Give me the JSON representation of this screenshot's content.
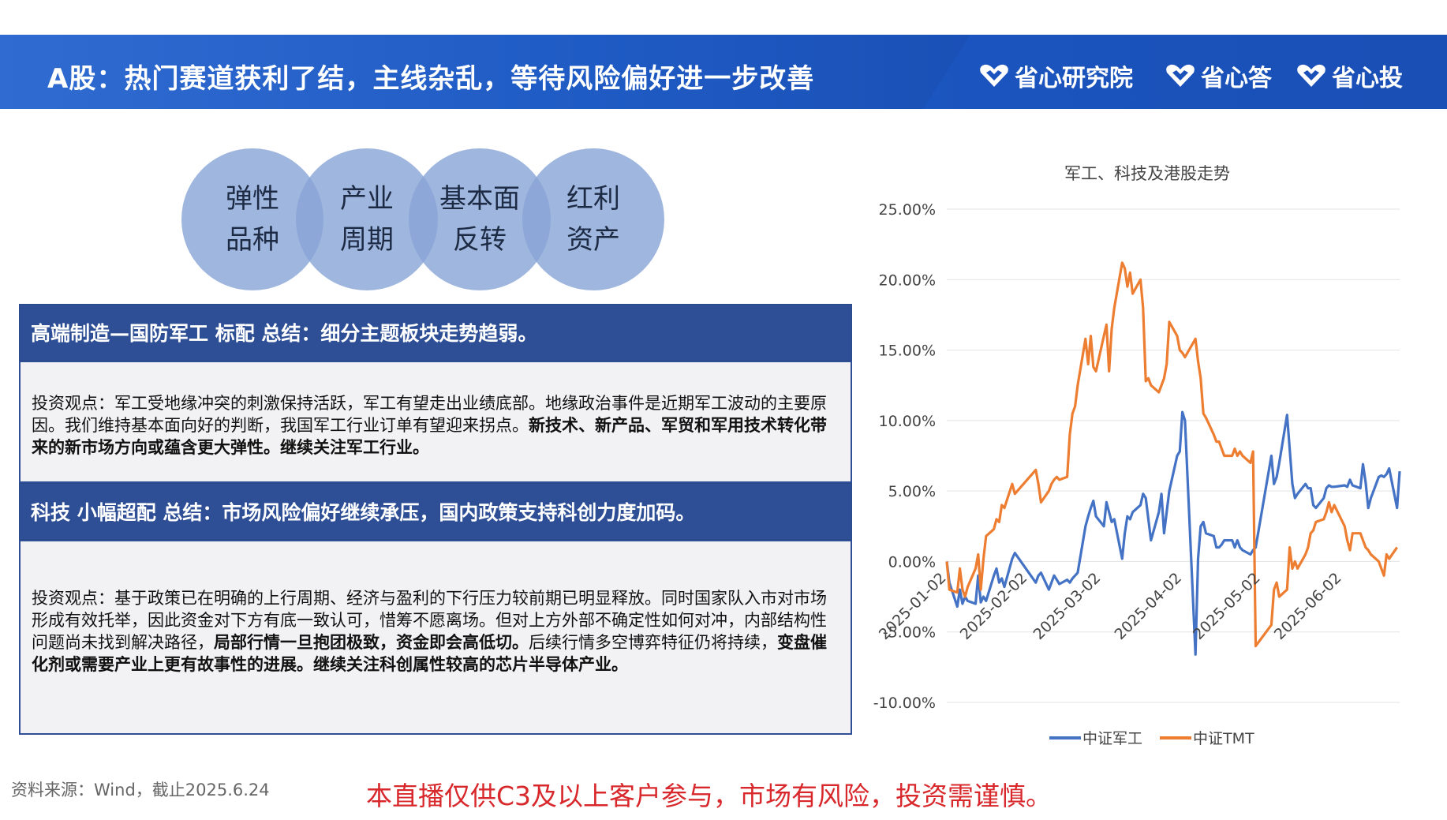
{
  "header": {
    "title": "A股：热门赛道获利了结，主线杂乱，等待风险偏好进一步改善",
    "brands": [
      "省心研究院",
      "省心答",
      "省心投"
    ]
  },
  "bubbles": [
    {
      "line1": "弹性",
      "line2": "品种"
    },
    {
      "line1": "产业",
      "line2": "周期"
    },
    {
      "line1": "基本面",
      "line2": "反转"
    },
    {
      "line1": "红利",
      "line2": "资产"
    }
  ],
  "sections": [
    {
      "heading": "高端制造—国防军工 标配 总结：细分主题板块走势趋弱。",
      "text_plain": "投资观点：军工受地缘冲突的刺激保持活跃，军工有望走出业绩底部。地缘政治事件是近期军工波动的主要原因。我们维持基本面向好的判断，我国军工行业订单有望迎来拐点。",
      "text_bold": "新技术、新产品、军贸和军用技术转化带来的新市场方向或蕴含更大弹性。继续关注军工行业。"
    },
    {
      "heading": "科技 小幅超配 总结：市场风险偏好继续承压，国内政策支持科创力度加码。",
      "text_plain1": "投资观点：基于政策已在明确的上行周期、经济与盈利的下行压力较前期已明显释放。同时国家队入市对市场形成有效托举，因此资金对下方有底一致认可，惜筹不愿离场。但对上方外部不确定性如何对冲，内部结构性问题尚未找到解决路径，",
      "text_bold1": "局部行情一旦抱团极致，资金即会高低切。",
      "text_plain2": "后续行情多空博弈特征仍将持续，",
      "text_bold2": "变盘催化剂或需要产业上更有故事性的进展。继续关注科创属性较高的芯片半导体产业。"
    }
  ],
  "footer": {
    "source": "资料来源：Wind，截止2025.6.24",
    "warning": "本直播仅供C3及以上客户参与，市场有风险，投资需谨慎。"
  },
  "colors": {
    "header_blue": "#1f5bc4",
    "section_blue": "#2e4f96",
    "series_military": "#4472c4",
    "series_tmt": "#ed7d31",
    "warning_red": "#d8282c"
  },
  "chart_data": {
    "type": "line",
    "title": "军工、科技及港股走势",
    "ylim": [
      -10,
      25
    ],
    "yticks": [
      -10,
      -5,
      0,
      5,
      10,
      15,
      20,
      25
    ],
    "ytick_labels": [
      "-10.00%",
      "-5.00%",
      "0.00%",
      "5.00%",
      "10.00%",
      "15.00%",
      "20.00%",
      "25.00%"
    ],
    "xtick_labels": [
      "2025-01-02",
      "2025-02-02",
      "2025-03-02",
      "2025-04-02",
      "2025-05-02",
      "2025-06-02"
    ],
    "x_start": "2025-01-02",
    "x_end": "2025-06-24",
    "grid": true,
    "legend_position": "bottom",
    "series": [
      {
        "name": "中证军工",
        "color": "#4472c4",
        "points": [
          [
            "2025-01-02",
            0
          ],
          [
            "2025-01-03",
            -1.5
          ],
          [
            "2025-01-06",
            -3.2
          ],
          [
            "2025-01-07",
            -2.0
          ],
          [
            "2025-01-08",
            -3.0
          ],
          [
            "2025-01-09",
            -2.5
          ],
          [
            "2025-01-10",
            -2.8
          ],
          [
            "2025-01-13",
            -3.0
          ],
          [
            "2025-01-14",
            -1.0
          ],
          [
            "2025-01-15",
            -2.9
          ],
          [
            "2025-01-16",
            -2.5
          ],
          [
            "2025-01-17",
            -2.8
          ],
          [
            "2025-01-20",
            -1.0
          ],
          [
            "2025-01-21",
            -0.5
          ],
          [
            "2025-01-22",
            -1.5
          ],
          [
            "2025-01-23",
            -1.2
          ],
          [
            "2025-01-24",
            -1.8
          ],
          [
            "2025-01-27",
            0.2
          ],
          [
            "2025-01-28",
            0.6
          ],
          [
            "2025-02-05",
            -1.5
          ],
          [
            "2025-02-06",
            -1.0
          ],
          [
            "2025-02-07",
            -0.8
          ],
          [
            "2025-02-10",
            -2.0
          ],
          [
            "2025-02-11",
            -1.5
          ],
          [
            "2025-02-12",
            -1.0
          ],
          [
            "2025-02-13",
            -1.3
          ],
          [
            "2025-02-14",
            -1.6
          ],
          [
            "2025-02-17",
            -1.3
          ],
          [
            "2025-02-18",
            -1.5
          ],
          [
            "2025-02-19",
            -1.2
          ],
          [
            "2025-02-20",
            -1.0
          ],
          [
            "2025-02-21",
            -0.8
          ],
          [
            "2025-02-24",
            2.5
          ],
          [
            "2025-02-25",
            3.2
          ],
          [
            "2025-02-26",
            3.8
          ],
          [
            "2025-02-27",
            4.3
          ],
          [
            "2025-02-28",
            3.2
          ],
          [
            "2025-03-03",
            2.5
          ],
          [
            "2025-03-04",
            4.2
          ],
          [
            "2025-03-05",
            3.5
          ],
          [
            "2025-03-06",
            2.8
          ],
          [
            "2025-03-07",
            3.0
          ],
          [
            "2025-03-10",
            0.2
          ],
          [
            "2025-03-11",
            2.0
          ],
          [
            "2025-03-12",
            3.2
          ],
          [
            "2025-03-13",
            3.0
          ],
          [
            "2025-03-14",
            3.5
          ],
          [
            "2025-03-17",
            4.0
          ],
          [
            "2025-03-18",
            4.8
          ],
          [
            "2025-03-19",
            4.5
          ],
          [
            "2025-03-20",
            3.0
          ],
          [
            "2025-03-21",
            1.5
          ],
          [
            "2025-03-24",
            3.5
          ],
          [
            "2025-03-25",
            4.8
          ],
          [
            "2025-03-26",
            2.0
          ],
          [
            "2025-03-27",
            3.5
          ],
          [
            "2025-03-28",
            5.0
          ],
          [
            "2025-03-31",
            7.5
          ],
          [
            "2025-04-01",
            7.8
          ],
          [
            "2025-04-02",
            10.6
          ],
          [
            "2025-04-03",
            10.0
          ],
          [
            "2025-04-07",
            -6.6
          ],
          [
            "2025-04-08",
            0.2
          ],
          [
            "2025-04-09",
            2.5
          ],
          [
            "2025-04-10",
            2.8
          ],
          [
            "2025-04-11",
            2.0
          ],
          [
            "2025-04-14",
            1.8
          ],
          [
            "2025-04-15",
            1.0
          ],
          [
            "2025-04-16",
            1.0
          ],
          [
            "2025-04-17",
            1.2
          ],
          [
            "2025-04-18",
            1.5
          ],
          [
            "2025-04-21",
            1.5
          ],
          [
            "2025-04-22",
            1.0
          ],
          [
            "2025-04-23",
            1.5
          ],
          [
            "2025-04-24",
            1.0
          ],
          [
            "2025-04-25",
            0.8
          ],
          [
            "2025-04-28",
            0.5
          ],
          [
            "2025-04-29",
            0.8
          ],
          [
            "2025-04-30",
            1.0
          ],
          [
            "2025-05-06",
            7.5
          ],
          [
            "2025-05-07",
            5.5
          ],
          [
            "2025-05-08",
            6.0
          ],
          [
            "2025-05-09",
            7.0
          ],
          [
            "2025-05-12",
            10.4
          ],
          [
            "2025-05-13",
            8.0
          ],
          [
            "2025-05-14",
            5.5
          ],
          [
            "2025-05-15",
            4.5
          ],
          [
            "2025-05-16",
            4.8
          ],
          [
            "2025-05-19",
            5.5
          ],
          [
            "2025-05-20",
            5.2
          ],
          [
            "2025-05-21",
            5.2
          ],
          [
            "2025-05-22",
            4.0
          ],
          [
            "2025-05-23",
            3.8
          ],
          [
            "2025-05-26",
            4.5
          ],
          [
            "2025-05-27",
            5.2
          ],
          [
            "2025-05-28",
            5.4
          ],
          [
            "2025-05-29",
            5.3
          ],
          [
            "2025-05-30",
            5.3
          ],
          [
            "2025-06-03",
            5.4
          ],
          [
            "2025-06-04",
            5.3
          ],
          [
            "2025-06-05",
            5.8
          ],
          [
            "2025-06-06",
            5.4
          ],
          [
            "2025-06-09",
            5.2
          ],
          [
            "2025-06-10",
            6.9
          ],
          [
            "2025-06-11",
            5.6
          ],
          [
            "2025-06-12",
            3.8
          ],
          [
            "2025-06-13",
            4.5
          ],
          [
            "2025-06-16",
            6.0
          ],
          [
            "2025-06-17",
            6.1
          ],
          [
            "2025-06-18",
            6.0
          ],
          [
            "2025-06-19",
            6.2
          ],
          [
            "2025-06-20",
            6.6
          ],
          [
            "2025-06-23",
            3.8
          ],
          [
            "2025-06-24",
            6.4
          ]
        ]
      },
      {
        "name": "中证TMT",
        "color": "#ed7d31",
        "points": [
          [
            "2025-01-02",
            0
          ],
          [
            "2025-01-03",
            -2.0
          ],
          [
            "2025-01-06",
            -2.2
          ],
          [
            "2025-01-07",
            -0.5
          ],
          [
            "2025-01-08",
            -2.0
          ],
          [
            "2025-01-09",
            -2.5
          ],
          [
            "2025-01-10",
            -1.8
          ],
          [
            "2025-01-13",
            -0.5
          ],
          [
            "2025-01-14",
            0.5
          ],
          [
            "2025-01-15",
            -2.0
          ],
          [
            "2025-01-16",
            0.2
          ],
          [
            "2025-01-17",
            1.8
          ],
          [
            "2025-01-20",
            2.3
          ],
          [
            "2025-01-21",
            3.0
          ],
          [
            "2025-01-22",
            2.8
          ],
          [
            "2025-01-23",
            4.0
          ],
          [
            "2025-01-24",
            3.8
          ],
          [
            "2025-01-27",
            5.5
          ],
          [
            "2025-01-28",
            4.8
          ],
          [
            "2025-02-05",
            6.5
          ],
          [
            "2025-02-06",
            5.5
          ],
          [
            "2025-02-07",
            4.2
          ],
          [
            "2025-02-10",
            5.0
          ],
          [
            "2025-02-11",
            5.5
          ],
          [
            "2025-02-12",
            5.8
          ],
          [
            "2025-02-13",
            6.0
          ],
          [
            "2025-02-14",
            5.8
          ],
          [
            "2025-02-17",
            6.0
          ],
          [
            "2025-02-18",
            9.0
          ],
          [
            "2025-02-19",
            10.5
          ],
          [
            "2025-02-20",
            11.0
          ],
          [
            "2025-02-21",
            12.5
          ],
          [
            "2025-02-24",
            15.8
          ],
          [
            "2025-02-25",
            14.0
          ],
          [
            "2025-02-26",
            16.0
          ],
          [
            "2025-02-27",
            13.8
          ],
          [
            "2025-02-28",
            13.5
          ],
          [
            "2025-03-03",
            16.0
          ],
          [
            "2025-03-04",
            16.8
          ],
          [
            "2025-03-05",
            13.5
          ],
          [
            "2025-03-06",
            16.5
          ],
          [
            "2025-03-07",
            18.0
          ],
          [
            "2025-03-10",
            21.2
          ],
          [
            "2025-03-11",
            20.8
          ],
          [
            "2025-03-12",
            19.5
          ],
          [
            "2025-03-13",
            20.5
          ],
          [
            "2025-03-14",
            19.0
          ],
          [
            "2025-03-17",
            20.0
          ],
          [
            "2025-03-18",
            18.0
          ],
          [
            "2025-03-19",
            12.8
          ],
          [
            "2025-03-20",
            13.0
          ],
          [
            "2025-03-21",
            12.5
          ],
          [
            "2025-03-24",
            12.0
          ],
          [
            "2025-03-25",
            12.5
          ],
          [
            "2025-03-26",
            13.0
          ],
          [
            "2025-03-27",
            14.0
          ],
          [
            "2025-03-28",
            17.0
          ],
          [
            "2025-03-31",
            16.0
          ],
          [
            "2025-04-01",
            15.0
          ],
          [
            "2025-04-02",
            14.8
          ],
          [
            "2025-04-03",
            14.5
          ],
          [
            "2025-04-07",
            15.8
          ],
          [
            "2025-04-08",
            14.2
          ],
          [
            "2025-04-09",
            13.0
          ],
          [
            "2025-04-10",
            10.5
          ],
          [
            "2025-04-11",
            10.2
          ],
          [
            "2025-04-14",
            9.0
          ],
          [
            "2025-04-15",
            8.5
          ],
          [
            "2025-04-16",
            8.5
          ],
          [
            "2025-04-17",
            8.0
          ],
          [
            "2025-04-18",
            7.5
          ],
          [
            "2025-04-21",
            7.5
          ],
          [
            "2025-04-22",
            8.0
          ],
          [
            "2025-04-23",
            7.5
          ],
          [
            "2025-04-24",
            7.8
          ],
          [
            "2025-04-25",
            7.5
          ],
          [
            "2025-04-28",
            7.0
          ],
          [
            "2025-04-29",
            7.8
          ],
          [
            "2025-04-30",
            -6.0
          ],
          [
            "2025-05-06",
            -4.5
          ],
          [
            "2025-05-07",
            -2.0
          ],
          [
            "2025-05-08",
            -1.5
          ],
          [
            "2025-05-09",
            -2.5
          ],
          [
            "2025-05-12",
            -2.0
          ],
          [
            "2025-05-13",
            1.0
          ],
          [
            "2025-05-14",
            -0.5
          ],
          [
            "2025-05-15",
            0.0
          ],
          [
            "2025-05-16",
            -0.5
          ],
          [
            "2025-05-19",
            0.5
          ],
          [
            "2025-05-20",
            1.0
          ],
          [
            "2025-05-21",
            2.0
          ],
          [
            "2025-05-22",
            2.2
          ],
          [
            "2025-05-23",
            2.8
          ],
          [
            "2025-05-26",
            3.0
          ],
          [
            "2025-05-27",
            3.5
          ],
          [
            "2025-05-28",
            4.2
          ],
          [
            "2025-05-29",
            3.5
          ],
          [
            "2025-05-30",
            4.0
          ],
          [
            "2025-06-03",
            2.5
          ],
          [
            "2025-06-04",
            1.5
          ],
          [
            "2025-06-05",
            0.8
          ],
          [
            "2025-06-06",
            2.0
          ],
          [
            "2025-06-09",
            2.0
          ],
          [
            "2025-06-10",
            1.5
          ],
          [
            "2025-06-11",
            1.0
          ],
          [
            "2025-06-12",
            0.8
          ],
          [
            "2025-06-13",
            0.5
          ],
          [
            "2025-06-16",
            0.0
          ],
          [
            "2025-06-17",
            -0.5
          ],
          [
            "2025-06-18",
            -1.0
          ],
          [
            "2025-06-19",
            0.5
          ],
          [
            "2025-06-20",
            0.2
          ],
          [
            "2025-06-23",
            1.0
          ]
        ]
      }
    ]
  }
}
